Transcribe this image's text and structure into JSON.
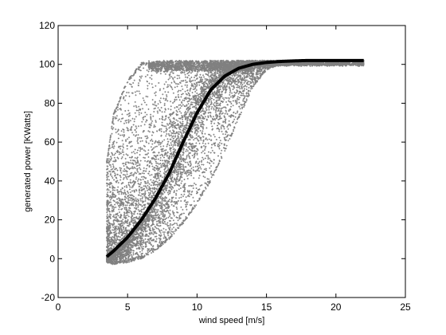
{
  "chart_data": {
    "type": "scatter",
    "xlabel": "wind speed [m/s]",
    "ylabel": "generated power [KWatts]",
    "xlim": [
      0,
      25
    ],
    "ylim": [
      -20,
      120
    ],
    "x_ticks": [
      0,
      5,
      10,
      15,
      20,
      25
    ],
    "y_ticks": [
      -20,
      0,
      20,
      40,
      60,
      80,
      100,
      120
    ],
    "grid": false,
    "legend": "none",
    "colors": {
      "scatter": "#808080",
      "curve": "#000000",
      "axes": "#000000",
      "background": "#ffffff"
    },
    "scatter_envelope": {
      "x_min": 3.5,
      "x_max": 22,
      "y_min": -3,
      "y_max": 102,
      "description_points": [
        [
          3.5,
          -2
        ],
        [
          4,
          -3
        ],
        [
          5,
          -2
        ],
        [
          6,
          0
        ],
        [
          7,
          4
        ],
        [
          8,
          10
        ],
        [
          9,
          18
        ],
        [
          10,
          28
        ],
        [
          11,
          40
        ],
        [
          12,
          55
        ],
        [
          13,
          72
        ],
        [
          14,
          88
        ],
        [
          15,
          97
        ],
        [
          16,
          100
        ],
        [
          18,
          101
        ],
        [
          22,
          101
        ]
      ],
      "upper_points": [
        [
          3.5,
          50
        ],
        [
          4,
          75
        ],
        [
          5,
          92
        ],
        [
          6,
          101
        ],
        [
          8,
          102
        ],
        [
          22,
          102
        ]
      ]
    },
    "series": [
      {
        "type": "line",
        "x": [
          3.5,
          4,
          5,
          6,
          7,
          8,
          9,
          10,
          11,
          12,
          13,
          14,
          15,
          16,
          17,
          18,
          19,
          20,
          21,
          22
        ],
        "y": [
          1,
          4,
          11,
          20,
          31,
          44,
          60,
          75,
          87,
          94,
          98,
          100,
          101,
          101.5,
          101.8,
          102,
          102,
          102,
          102,
          102
        ]
      }
    ]
  }
}
